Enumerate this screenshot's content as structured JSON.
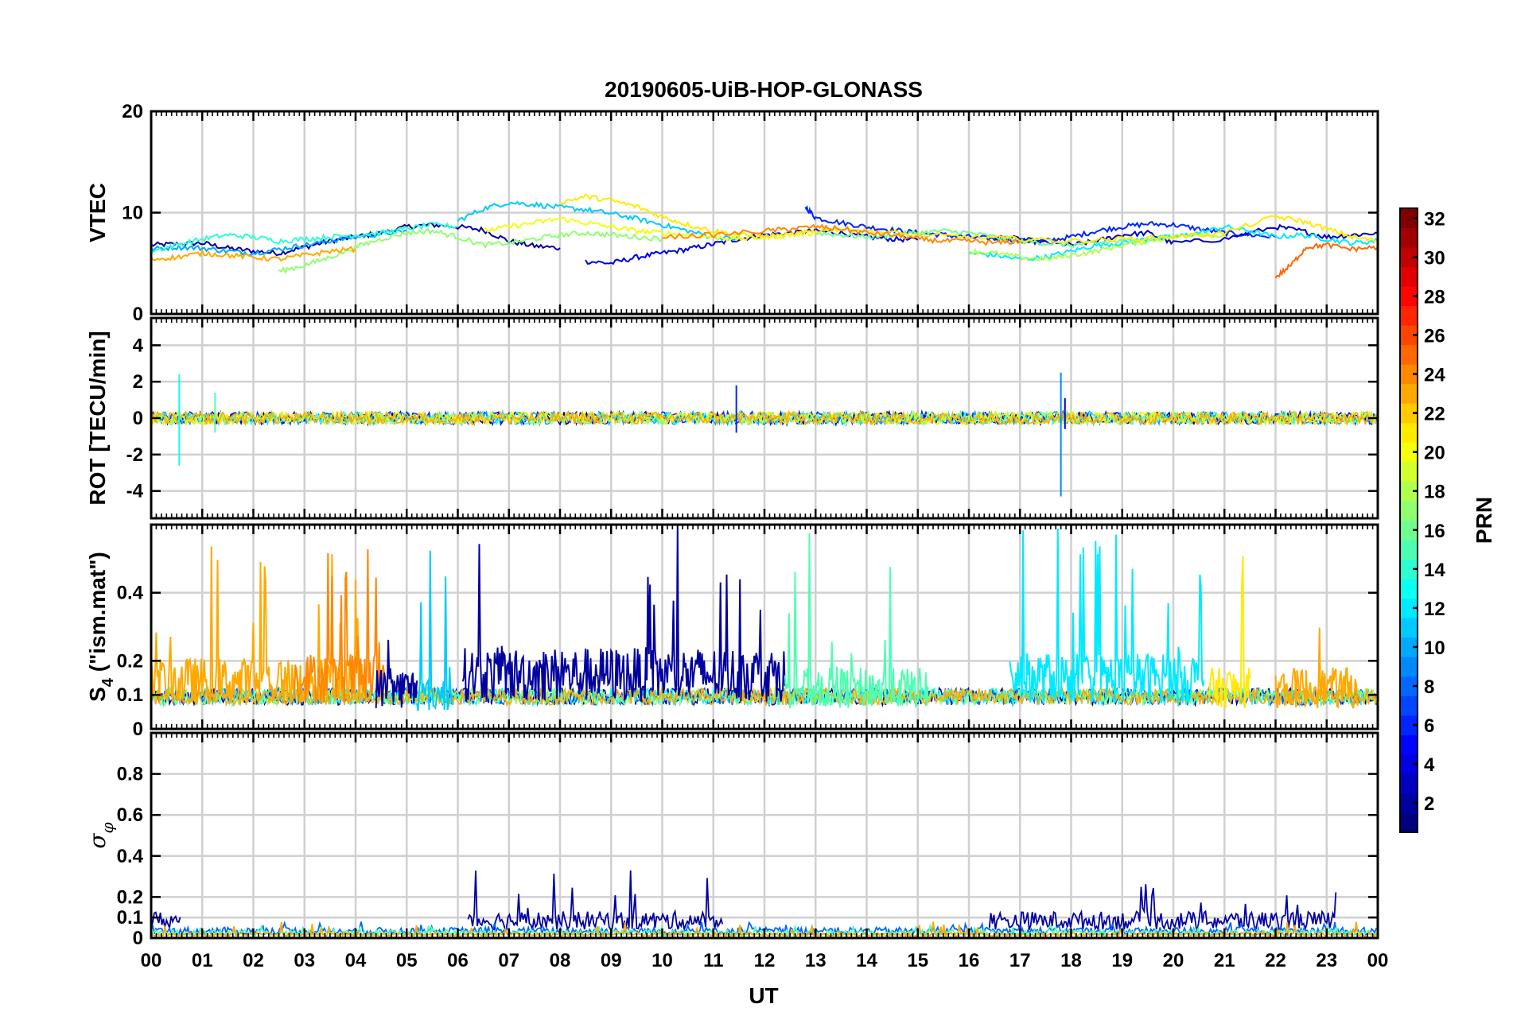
{
  "chart_data": {
    "type": "line",
    "title": "20190605-UiB-HOP-GLONASS",
    "xlabel": "UT",
    "x_ticks": [
      "00",
      "01",
      "02",
      "03",
      "04",
      "05",
      "06",
      "07",
      "08",
      "09",
      "10",
      "11",
      "12",
      "13",
      "14",
      "15",
      "16",
      "17",
      "18",
      "19",
      "20",
      "21",
      "22",
      "23",
      "00"
    ],
    "x_range_hours": [
      0,
      24
    ],
    "grid": true,
    "panels": [
      {
        "id": "vtec",
        "ylabel": "VTEC",
        "ylim": [
          0,
          20
        ],
        "yticks": [
          0,
          10,
          20
        ],
        "ytick_labels": [
          "0",
          "10",
          "20"
        ],
        "series": [
          {
            "prn": 2,
            "x": [
              0.0,
              0.5,
              1.0,
              1.5,
              2.0,
              2.5,
              3.0,
              3.5,
              4.0,
              4.5,
              5.0,
              5.5,
              6.0,
              6.5,
              7.0,
              7.5,
              8.0
            ],
            "y": [
              6.8,
              6.9,
              7.0,
              6.5,
              6.2,
              6.0,
              6.6,
              7.2,
              7.6,
              8.0,
              8.6,
              8.8,
              8.6,
              8.3,
              7.2,
              6.7,
              6.5
            ]
          },
          {
            "prn": 4,
            "x": [
              8.5,
              9.0,
              9.5,
              10.0,
              10.5,
              11.0,
              11.5,
              12.0,
              12.5,
              13.0,
              13.5,
              14.0,
              14.5,
              15.0
            ],
            "y": [
              5.2,
              5.0,
              5.6,
              6.0,
              6.4,
              6.9,
              7.4,
              7.8,
              8.0,
              8.2,
              8.0,
              7.6,
              7.4,
              7.3
            ]
          },
          {
            "prn": 6,
            "x": [
              12.8,
              13.0,
              13.5,
              14.0,
              14.5,
              15.0,
              15.5,
              16.0,
              16.5,
              17.0,
              17.5,
              18.0,
              18.5,
              19.0,
              19.5,
              20.0,
              20.5,
              21.0,
              21.5,
              22.0
            ],
            "y": [
              10.6,
              9.5,
              9.0,
              8.6,
              8.3,
              8.0,
              7.8,
              7.6,
              7.4,
              7.2,
              7.2,
              7.6,
              8.2,
              8.6,
              8.9,
              8.8,
              8.4,
              8.0,
              7.8,
              7.6
            ]
          },
          {
            "prn": 3,
            "x": [
              16.5,
              17.0,
              17.5,
              18.0,
              18.5,
              19.0,
              19.5,
              20.0,
              21.0,
              22.0,
              22.5,
              23.0,
              23.5,
              24.0
            ],
            "y": [
              7.6,
              7.4,
              7.0,
              6.8,
              7.2,
              7.8,
              8.0,
              7.0,
              7.4,
              8.6,
              8.2,
              7.6,
              7.8,
              8.0
            ]
          },
          {
            "prn": 10,
            "x": [
              0.0,
              0.5,
              1.0,
              1.5,
              2.0,
              2.5,
              3.0,
              3.5,
              4.0,
              4.5,
              5.0
            ],
            "y": [
              6.4,
              6.6,
              6.5,
              6.2,
              6.0,
              6.4,
              6.8,
              7.2,
              7.6,
              7.9,
              8.2
            ]
          },
          {
            "prn": 11,
            "x": [
              6.0,
              6.5,
              7.0,
              7.5,
              8.0,
              8.5,
              9.0,
              9.5,
              10.0,
              10.5,
              11.0,
              11.5
            ],
            "y": [
              9.2,
              10.4,
              11.0,
              10.8,
              10.5,
              10.3,
              9.9,
              9.4,
              8.8,
              8.2,
              7.6,
              7.4
            ]
          },
          {
            "prn": 12,
            "x": [
              16.0,
              16.5,
              17.0,
              17.5,
              18.0,
              18.5,
              19.0,
              19.5,
              20.0,
              20.5,
              21.0,
              21.5,
              22.0,
              22.5,
              23.0,
              23.5,
              24.0
            ],
            "y": [
              6.0,
              5.8,
              5.4,
              5.6,
              6.2,
              6.8,
              7.0,
              7.4,
              7.6,
              8.0,
              8.6,
              8.2,
              7.6,
              7.8,
              7.4,
              7.0,
              7.2
            ]
          },
          {
            "prn": 14,
            "x": [
              0.0,
              0.5,
              1.0,
              1.5,
              2.0,
              2.5,
              3.0,
              3.5,
              4.0,
              4.5,
              5.0,
              5.5,
              6.0
            ],
            "y": [
              6.2,
              6.8,
              7.4,
              7.8,
              7.6,
              7.2,
              7.4,
              7.6,
              7.8,
              8.0,
              8.4,
              8.8,
              8.6
            ]
          },
          {
            "prn": 16,
            "x": [
              13.0,
              13.5,
              14.0,
              14.5,
              15.0,
              15.5,
              16.0,
              16.5,
              17.0,
              17.5,
              18.0,
              18.5,
              19.0,
              19.5,
              20.0
            ],
            "y": [
              8.0,
              7.8,
              7.6,
              7.8,
              8.0,
              8.2,
              8.0,
              7.6,
              7.2,
              7.0,
              6.8,
              7.0,
              7.2,
              7.4,
              7.6
            ]
          },
          {
            "prn": 17,
            "x": [
              2.5,
              3.0,
              3.5,
              4.0,
              4.5,
              5.0,
              5.5,
              6.0,
              6.5,
              7.0,
              7.5,
              8.0,
              8.5,
              9.0,
              9.5,
              10.0
            ],
            "y": [
              4.2,
              4.8,
              5.6,
              6.6,
              7.4,
              8.0,
              8.2,
              7.6,
              6.8,
              7.0,
              7.4,
              7.8,
              8.0,
              7.8,
              7.6,
              7.4
            ]
          },
          {
            "prn": 18,
            "x": [
              16.0,
              16.5,
              17.0,
              17.5,
              18.0,
              18.5,
              19.0,
              19.5,
              20.0,
              20.5,
              21.0
            ],
            "y": [
              6.2,
              6.0,
              5.6,
              5.4,
              5.8,
              6.2,
              6.8,
              7.2,
              7.6,
              8.0,
              7.6
            ]
          },
          {
            "prn": 20,
            "x": [
              6.5,
              7.0,
              7.5,
              8.0,
              8.5,
              9.0,
              9.5,
              10.0,
              10.5,
              11.0,
              11.5,
              12.0,
              12.5,
              13.0
            ],
            "y": [
              8.2,
              8.6,
              9.0,
              9.4,
              9.0,
              8.6,
              8.2,
              8.0,
              7.8,
              7.6,
              7.4,
              7.6,
              7.8,
              8.0
            ]
          },
          {
            "prn": 21,
            "x": [
              8.0,
              8.5,
              9.0,
              9.5,
              10.0,
              10.5,
              11.0,
              11.5,
              12.0,
              12.5,
              13.0,
              13.5,
              14.0,
              15.0,
              16.0,
              17.0,
              18.0,
              19.0,
              20.0,
              21.0,
              22.0,
              22.5,
              23.0,
              23.5,
              24.0
            ],
            "y": [
              11.0,
              11.6,
              11.2,
              10.6,
              9.6,
              8.8,
              8.2,
              7.8,
              7.6,
              7.8,
              8.2,
              8.4,
              8.2,
              7.8,
              7.6,
              7.4,
              7.2,
              7.4,
              7.6,
              8.0,
              9.6,
              9.2,
              8.4,
              7.6,
              7.2
            ]
          },
          {
            "prn": 23,
            "x": [
              0.0,
              0.5,
              1.0,
              1.5,
              2.0,
              2.5,
              3.0,
              3.5,
              4.0
            ],
            "y": [
              5.4,
              5.6,
              6.0,
              5.8,
              5.6,
              5.4,
              5.8,
              6.2,
              6.4
            ]
          },
          {
            "prn": 24,
            "x": [
              10.0,
              11.0,
              12.0,
              12.5,
              13.0,
              13.5,
              14.0,
              14.5,
              15.0,
              15.5,
              16.0,
              16.5,
              17.0
            ],
            "y": [
              7.6,
              7.8,
              8.2,
              8.4,
              8.6,
              8.4,
              8.0,
              7.8,
              7.4,
              7.2,
              7.2,
              7.0,
              7.2
            ]
          },
          {
            "prn": 25,
            "x": [
              22.0,
              22.3,
              22.6,
              23.0,
              23.5,
              24.0
            ],
            "y": [
              3.6,
              4.8,
              6.6,
              6.8,
              6.4,
              6.6
            ]
          }
        ]
      },
      {
        "id": "rot",
        "ylabel": "ROT [TECU/min]",
        "ylim": [
          -5.5,
          5.5
        ],
        "yticks": [
          -4,
          -2,
          0,
          2,
          4
        ],
        "ytick_labels": [
          "-4",
          "-2",
          "0",
          "2",
          "4"
        ],
        "spikes": [
          {
            "prn": 13,
            "x": 0.55,
            "y_min": -2.6,
            "y_max": 2.4
          },
          {
            "prn": 15,
            "x": 1.25,
            "y_min": -0.8,
            "y_max": 1.4
          },
          {
            "prn": 6,
            "x": 11.45,
            "y_min": -0.8,
            "y_max": 1.8
          },
          {
            "prn": 9,
            "x": 17.8,
            "y_min": -4.3,
            "y_max": 2.5
          },
          {
            "prn": 4,
            "x": 17.88,
            "y_min": -0.6,
            "y_max": 1.1
          }
        ],
        "noise_band": {
          "y_center": 0,
          "amplitude": 0.35
        }
      },
      {
        "id": "s4",
        "ylabel": "S4 (\"ism.mat\")",
        "ylabel_main": "S",
        "ylabel_sub": "4",
        "ylabel_rest": " (\"ism.mat\")",
        "ylim": [
          0,
          0.6
        ],
        "yticks": [
          0,
          0.1,
          0.2,
          0.4
        ],
        "ytick_labels": [
          "0",
          "0.1",
          "0.2",
          "0.4"
        ],
        "series_peaks": [
          {
            "prn": 23,
            "x_range": [
              0.0,
              4.2
            ],
            "base": 0.14,
            "peak": 0.56
          },
          {
            "prn": 24,
            "x_range": [
              2.8,
              4.6
            ],
            "base": 0.15,
            "peak": 0.55
          },
          {
            "prn": 2,
            "x_range": [
              4.4,
              5.2
            ],
            "base": 0.12,
            "peak": 0.6
          },
          {
            "prn": 11,
            "x_range": [
              5.2,
              5.9
            ],
            "base": 0.1,
            "peak": 0.6
          },
          {
            "prn": 2,
            "x_range": [
              6.1,
              12.4
            ],
            "base": 0.16,
            "peak": 0.6
          },
          {
            "prn": 15,
            "x_range": [
              12.4,
              15.2
            ],
            "base": 0.12,
            "peak": 0.58
          },
          {
            "prn": 12,
            "x_range": [
              16.8,
              20.6
            ],
            "base": 0.15,
            "peak": 0.6
          },
          {
            "prn": 21,
            "x_range": [
              20.7,
              21.5
            ],
            "base": 0.12,
            "peak": 0.6
          },
          {
            "prn": 23,
            "x_range": [
              22.0,
              23.6
            ],
            "base": 0.12,
            "peak": 0.45
          }
        ]
      },
      {
        "id": "sigma",
        "ylabel": "σφ",
        "ylabel_main": "σ",
        "ylabel_sub": "φ",
        "ylim": [
          0,
          1
        ],
        "yticks": [
          0,
          0.1,
          0.2,
          0.4,
          0.6,
          0.8
        ],
        "ytick_labels": [
          "0",
          "0.1",
          "0.2",
          "0.4",
          "0.6",
          "0.8"
        ],
        "series_levels": [
          {
            "prn": 2,
            "x_range": [
              0.0,
              0.6
            ],
            "level": 0.1,
            "peak": 0.16
          },
          {
            "prn": 2,
            "x_range": [
              6.2,
              11.2
            ],
            "level": 0.1,
            "peak": 0.33
          },
          {
            "prn": 2,
            "x_range": [
              16.4,
              23.2
            ],
            "level": 0.1,
            "peak": 0.28
          },
          {
            "prn": 8,
            "x_range": [
              0.0,
              24.0
            ],
            "level": 0.04,
            "peak": 0.08
          },
          {
            "prn": 15,
            "x_range": [
              0.0,
              24.0
            ],
            "level": 0.03,
            "peak": 0.06
          },
          {
            "prn": 23,
            "x_range": [
              0.0,
              24.0
            ],
            "level": 0.02,
            "peak": 0.08
          }
        ]
      }
    ],
    "colorbar": {
      "label": "PRN",
      "range": [
        1,
        32
      ],
      "colormap": "jet",
      "ticks": [
        2,
        4,
        6,
        8,
        10,
        12,
        14,
        16,
        18,
        20,
        22,
        24,
        26,
        28,
        30,
        32
      ],
      "tick_labels": [
        "2",
        "4",
        "6",
        "8",
        "10",
        "12",
        "14",
        "16",
        "18",
        "20",
        "22",
        "24",
        "26",
        "28",
        "30",
        "32"
      ]
    }
  }
}
